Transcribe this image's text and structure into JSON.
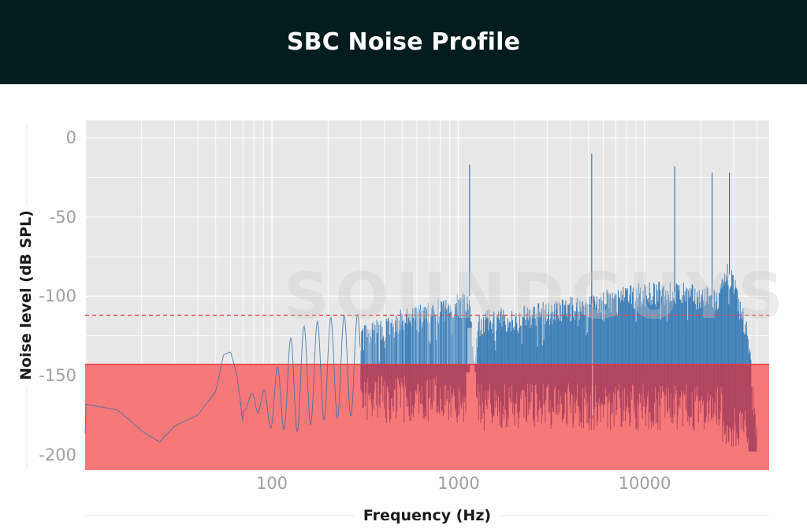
{
  "header": {
    "title": "SBC Noise Profile"
  },
  "colors": {
    "header_bg": "#031c1e",
    "plot_bg": "#e8e8e8",
    "signal_fill": "#3d7fb8",
    "signal_line": "#2f6fa8",
    "noise_floor_band": "#f77878",
    "noise_floor_border": "#e03c3c",
    "overlap": "#a8405e",
    "threshold_dashed": "#e04848"
  },
  "watermark": "SOUNDGUYS",
  "chart_data": {
    "type": "area",
    "title": "SBC Noise Profile",
    "xlabel": "Frequency (Hz)",
    "ylabel": "Noise level (dB SPL)",
    "xscale": "log",
    "xlim": [
      10,
      46000
    ],
    "ylim": [
      -210,
      12
    ],
    "x_ticks": [
      100,
      1000,
      10000
    ],
    "x_tick_labels": [
      "100",
      "1000",
      "10000"
    ],
    "y_ticks": [
      0,
      -50,
      -100,
      -150,
      -200
    ],
    "y_tick_labels": [
      "0",
      "-50",
      "-100",
      "-150",
      "-200"
    ],
    "grid": true,
    "legend": null,
    "reference_lines": [
      {
        "name": "threshold (dashed)",
        "y": -112,
        "style": "dashed",
        "color": "#e04848"
      },
      {
        "name": "noise floor band top",
        "y": -143,
        "style": "solid",
        "color": "#e03c3c"
      }
    ],
    "shaded_regions": [
      {
        "name": "below noise floor",
        "y_from": -210,
        "y_to": -143,
        "color": "#f77878"
      }
    ],
    "series": [
      {
        "name": "SBC noise spectrum (envelope)",
        "x": [
          10,
          15,
          20,
          25,
          30,
          40,
          50,
          55,
          60,
          65,
          70,
          80,
          90,
          100,
          120,
          150,
          200,
          300,
          400,
          500,
          700,
          1000,
          1150,
          1200,
          1300,
          1500,
          2000,
          3000,
          5000,
          8000,
          10000,
          14000,
          20000,
          25000,
          28000,
          30000,
          32000,
          36000,
          40000,
          46000
        ],
        "values": [
          -168,
          -172,
          -185,
          -192,
          -182,
          -175,
          -160,
          -137,
          -135,
          -150,
          -180,
          -160,
          -175,
          -170,
          -150,
          -135,
          -125,
          -120,
          -115,
          -110,
          -105,
          -100,
          -95,
          -135,
          -112,
          -110,
          -108,
          -105,
          -100,
          -95,
          -93,
          -92,
          -95,
          -97,
          -80,
          -85,
          -100,
          -120,
          -185,
          -187
        ]
      },
      {
        "name": "tonal spikes",
        "x": [
          1150,
          5200,
          14500,
          23000,
          28500
        ],
        "values": [
          -17,
          -10,
          -18,
          -22,
          -22
        ]
      }
    ]
  }
}
